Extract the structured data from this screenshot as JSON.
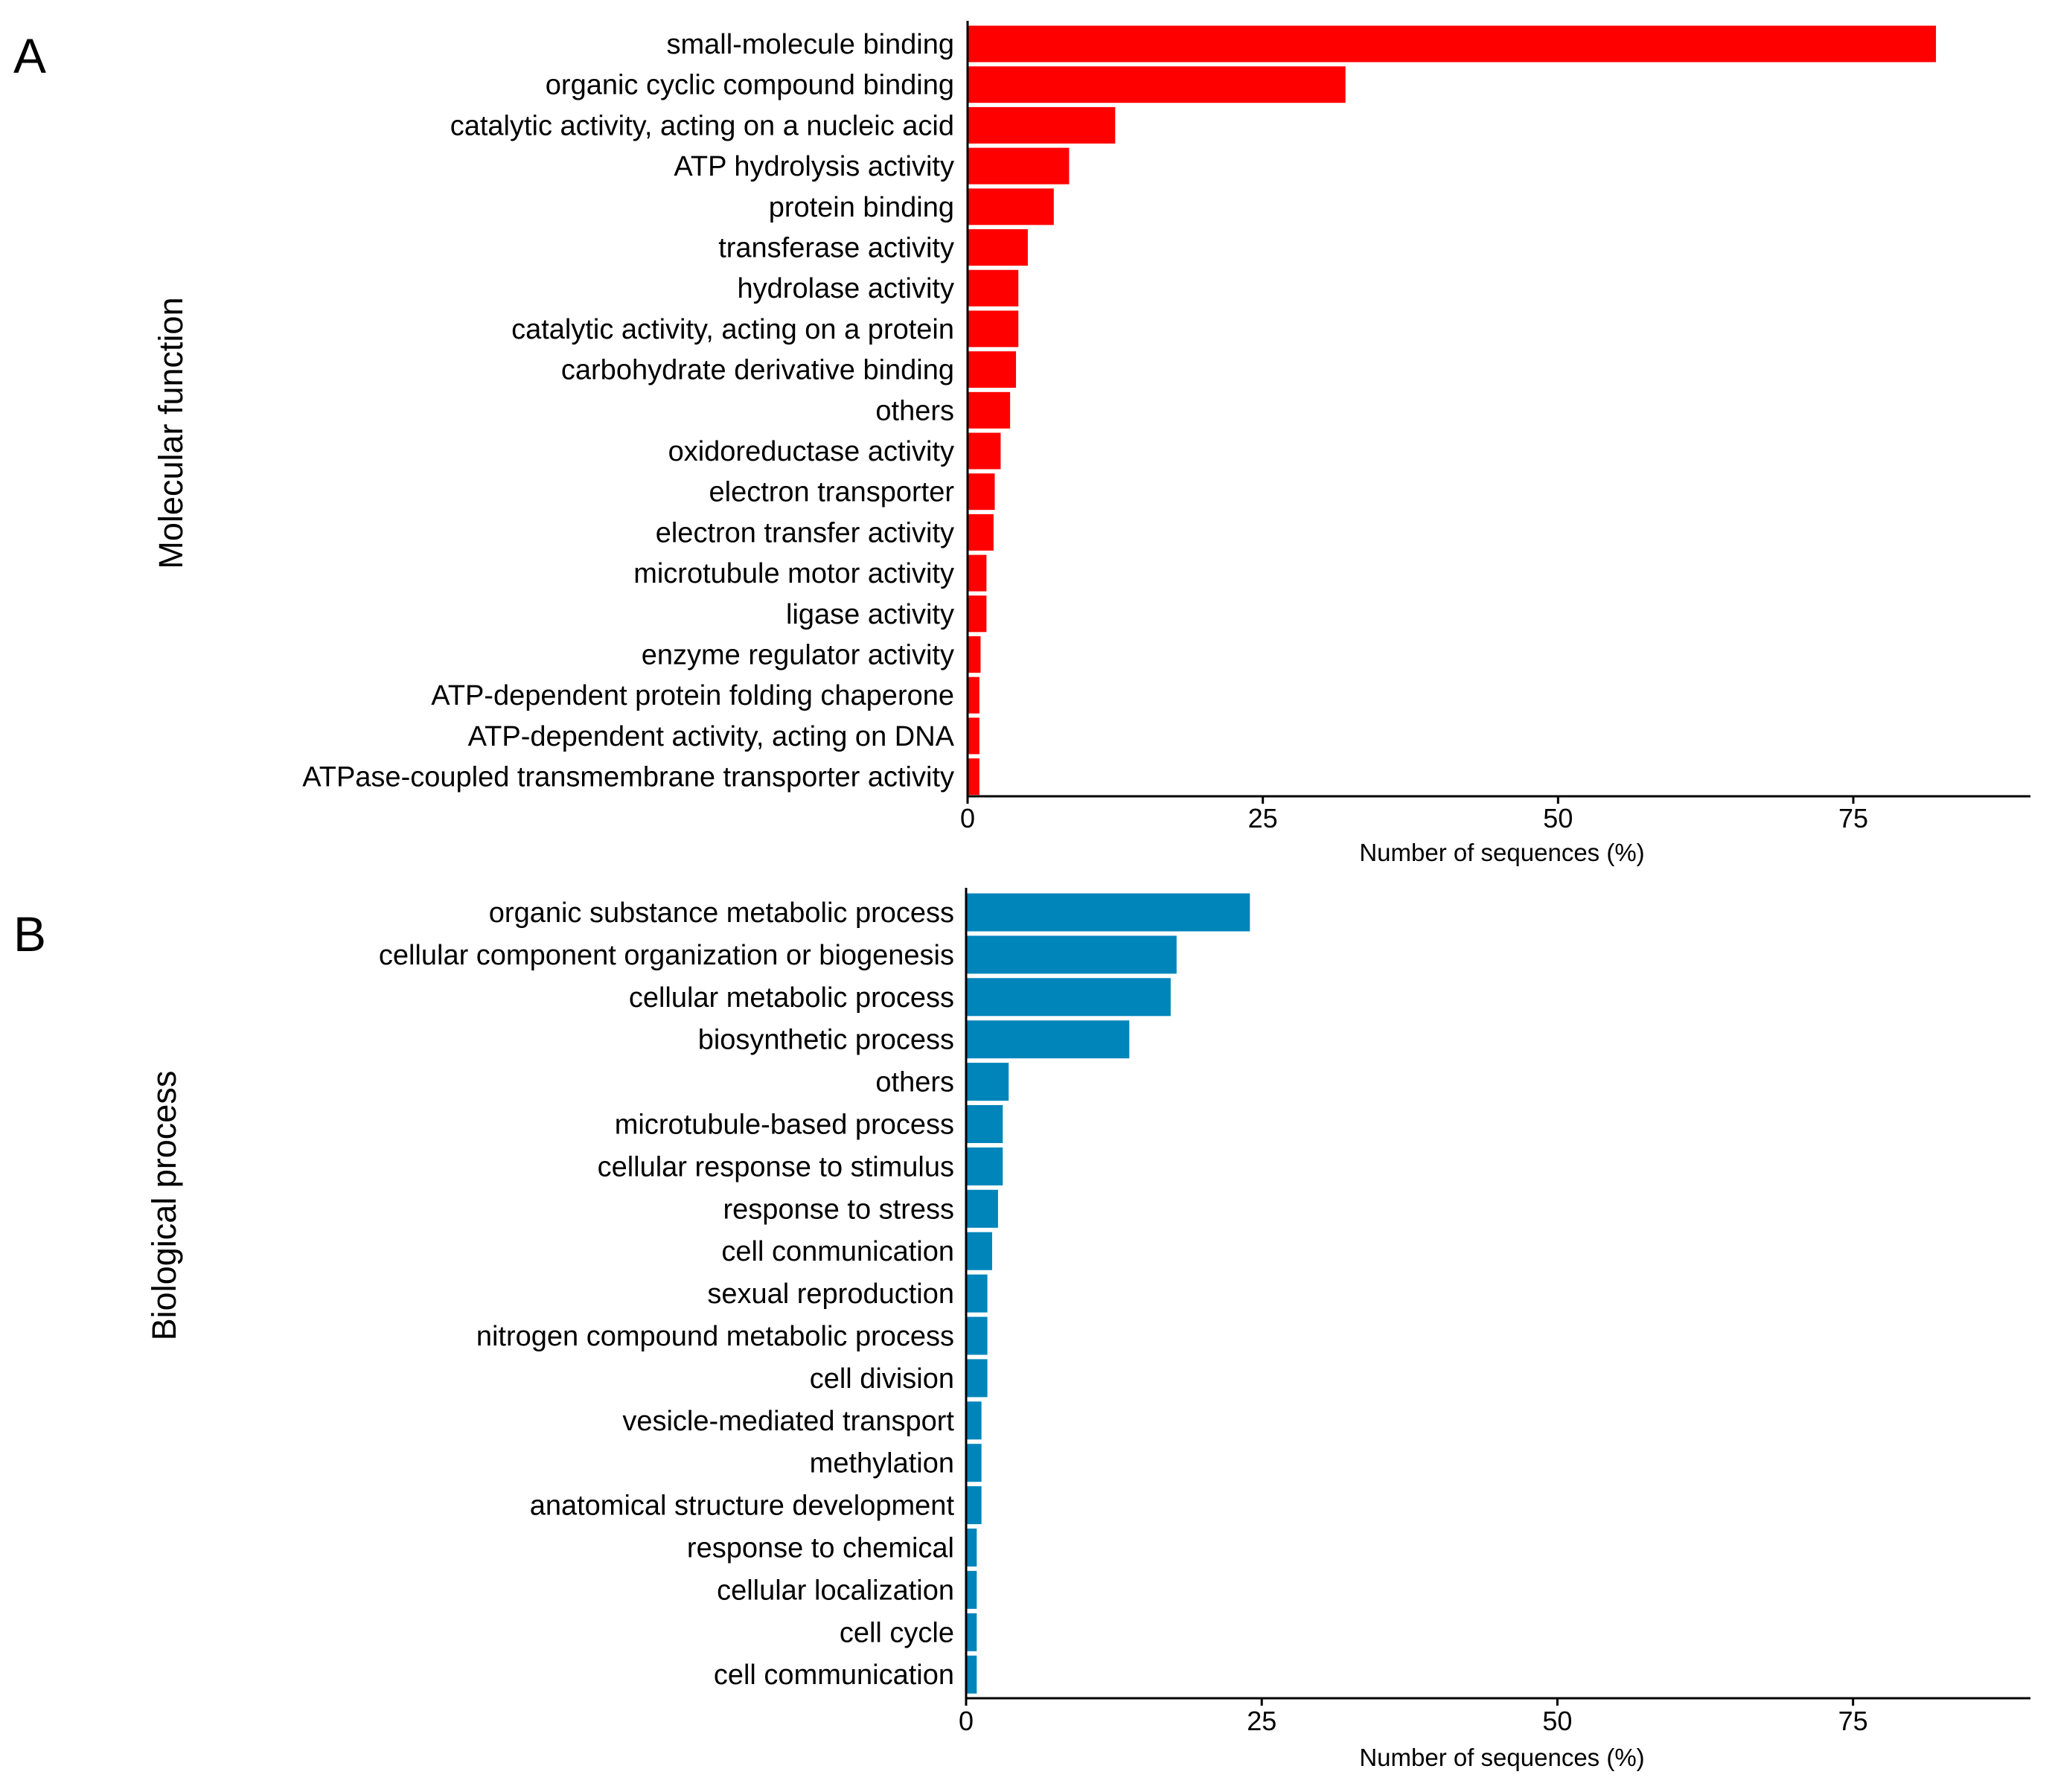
{
  "chart_data": [
    {
      "panel": "A",
      "type": "bar",
      "orientation": "horizontal",
      "ylabel": "Molecular function",
      "xlabel": "Number of sequences (%)",
      "xlim": [
        0,
        90
      ],
      "xticks": [
        0,
        25,
        50,
        75
      ],
      "color": "#ff0000",
      "categories": [
        "small-molecule binding",
        "organic cyclic compound binding",
        "catalytic activity, acting on a nucleic acid",
        "ATP hydrolysis activity",
        "protein binding",
        "transferase activity",
        "hydrolase activity",
        "catalytic activity, acting on a protein",
        "carbohydrate derivative binding",
        "others",
        "oxidoreductase activity",
        "electron transporter",
        "electron transfer activity",
        "microtubule motor activity",
        "ligase activity",
        "enzyme regulator activity",
        "ATP-dependent protein folding chaperone",
        "ATP-dependent activity, acting on DNA",
        "ATPase-coupled transmembrane transporter activity"
      ],
      "values": [
        82,
        32,
        12.5,
        8.6,
        7.3,
        5.1,
        4.3,
        4.3,
        4.1,
        3.6,
        2.8,
        2.3,
        2.2,
        1.6,
        1.6,
        1.1,
        1.0,
        1.0,
        1.0
      ]
    },
    {
      "panel": "B",
      "type": "bar",
      "orientation": "horizontal",
      "ylabel": "Biological process",
      "xlabel": "Number of sequences (%)",
      "xlim": [
        0,
        90
      ],
      "xticks": [
        0,
        25,
        50,
        75
      ],
      "color": "#0085bb",
      "categories": [
        "organic substance metabolic process",
        "cellular component organization or biogenesis",
        "cellular metabolic process",
        "biosynthetic process",
        "others",
        "microtubule-based process",
        "cellular response to stimulus",
        "response to stress",
        "cell conmunication",
        "sexual reproduction",
        "nitrogen compound metabolic process",
        "cell division",
        "vesicle-mediated transport",
        "methylation",
        "anatomical structure development",
        "response to chemical",
        "cellular localization",
        "cell cycle",
        "cell communication"
      ],
      "values": [
        24,
        17.8,
        17.3,
        13.8,
        3.6,
        3.1,
        3.1,
        2.7,
        2.2,
        1.8,
        1.8,
        1.8,
        1.3,
        1.3,
        1.3,
        0.9,
        0.9,
        0.9,
        0.9
      ]
    }
  ]
}
